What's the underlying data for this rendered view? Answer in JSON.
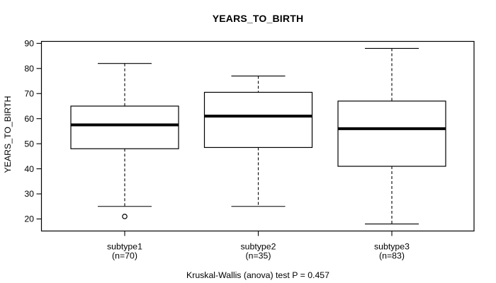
{
  "page": {
    "background": "#ffffff"
  },
  "chart_data": {
    "type": "boxplot",
    "title": "YEARS_TO_BIRTH",
    "ylabel": "YEARS_TO_BIRTH",
    "xlabel": "",
    "ylim": [
      15.2,
      90.8
    ],
    "yticks": [
      20,
      30,
      40,
      50,
      60,
      70,
      80,
      90
    ],
    "grid": false,
    "legend": "none",
    "categories": [
      "subtype1",
      "subtype2",
      "subtype3"
    ],
    "category_sublabels": [
      "(n=70)",
      "(n=35)",
      "(n=83)"
    ],
    "series": [
      {
        "name": "subtype1",
        "n": 70,
        "whisker_low": 25,
        "q1": 48,
        "median": 57.5,
        "q3": 65,
        "whisker_high": 82,
        "outliers": [
          21
        ]
      },
      {
        "name": "subtype2",
        "n": 35,
        "whisker_low": 25,
        "q1": 48.5,
        "median": 61,
        "q3": 70.5,
        "whisker_high": 77,
        "outliers": []
      },
      {
        "name": "subtype3",
        "n": 83,
        "whisker_low": 18,
        "q1": 41,
        "median": 56,
        "q3": 67,
        "whisker_high": 88,
        "outliers": []
      }
    ],
    "footnote": "Kruskal-Wallis (anova) test P = 0.457",
    "colors": {
      "line": "#000000",
      "box_fill": "#ffffff",
      "median": "#000000",
      "text": "#000000",
      "background": "#ffffff"
    }
  }
}
